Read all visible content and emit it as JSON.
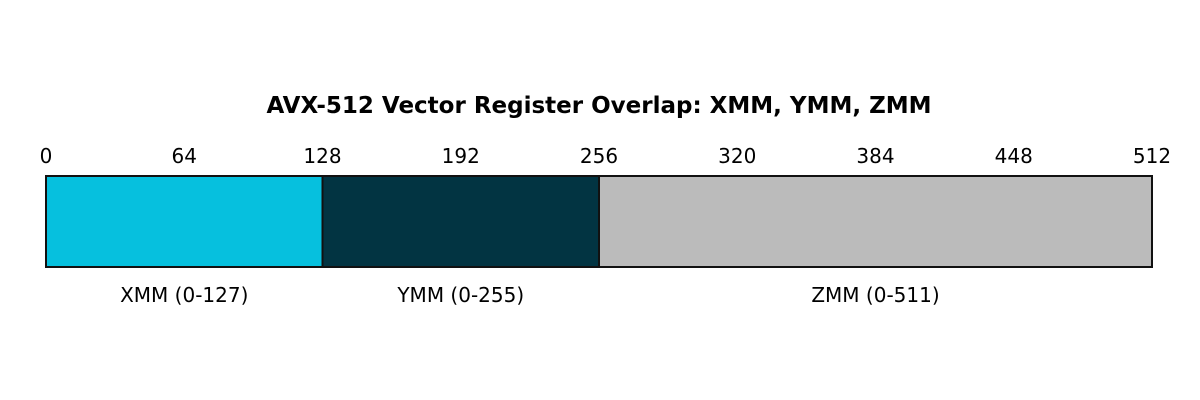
{
  "title": "AVX-512 Vector Register Overlap: XMM, YMM, ZMM",
  "scale": {
    "min": 0,
    "max": 512,
    "ticks": [
      "0",
      "64",
      "128",
      "192",
      "256",
      "320",
      "384",
      "448",
      "512"
    ]
  },
  "segments": [
    {
      "id": "xmm",
      "start": 0,
      "end": 128,
      "label": "XMM (0-127)",
      "color": "#06c0de"
    },
    {
      "id": "ymm",
      "start": 128,
      "end": 256,
      "label": "YMM (0-255)",
      "color": "#023442"
    },
    {
      "id": "zmm",
      "start": 256,
      "end": 512,
      "label": "ZMM (0-511)",
      "color": "#bbbbbb"
    }
  ],
  "colors": {
    "outline": "#111111",
    "background": "#ffffff"
  }
}
